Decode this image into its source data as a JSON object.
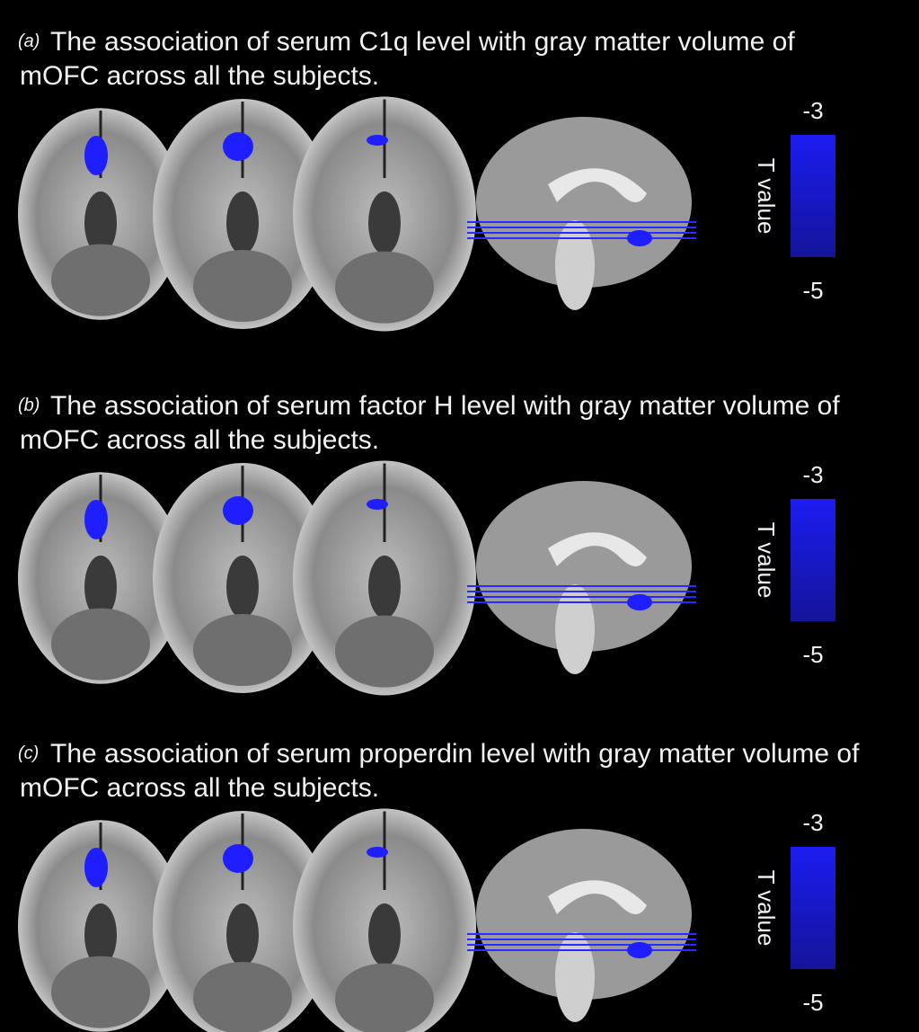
{
  "panels": [
    {
      "label": "(a)",
      "caption": [
        "The association of serum C1q level with gray matter volume of",
        "mOFC across all the subjects."
      ],
      "colorbar": {
        "top": "-3",
        "bottom": "-5",
        "title": "T value"
      }
    },
    {
      "label": "(b)",
      "caption": [
        "The association of serum factor H level with gray matter volume of",
        "mOFC across all the subjects."
      ],
      "colorbar": {
        "top": "-3",
        "bottom": "-5",
        "title": "T value"
      }
    },
    {
      "label": "(c)",
      "caption": [
        "The association of serum properdin level with gray matter volume of",
        "mOFC across all the subjects."
      ],
      "colorbar": {
        "top": "-3",
        "bottom": "-5",
        "title": "T value"
      }
    }
  ]
}
